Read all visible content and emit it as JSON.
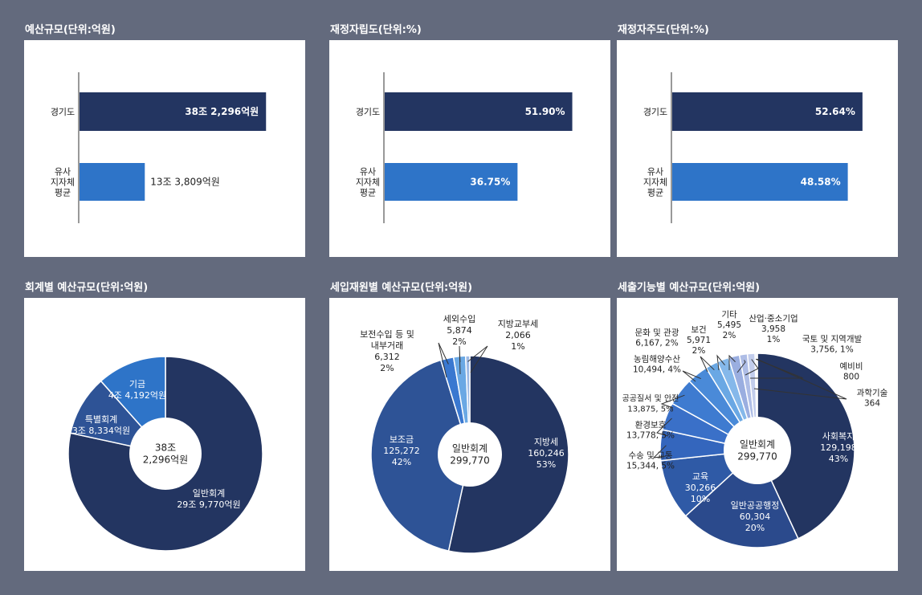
{
  "colors": {
    "background": "#636a7d",
    "navy": "#233561",
    "blue": "#2e74c8",
    "panel": "#ffffff"
  },
  "chart_data": [
    {
      "type": "bar",
      "orientation": "horizontal",
      "title": "예산규모(단위:억원)",
      "categories": [
        [
          "경기도"
        ],
        [
          "유사",
          "지자체",
          "평균"
        ]
      ],
      "values": [
        382296,
        133809
      ],
      "data_labels": [
        "38조 2,296억원",
        "13조 3,809억원"
      ],
      "bar_colors": [
        "#233561",
        "#2e74c8"
      ],
      "xlim": [
        0,
        400000
      ]
    },
    {
      "type": "bar",
      "orientation": "horizontal",
      "title": "재정자립도(단위:%)",
      "categories": [
        [
          "경기도"
        ],
        [
          "유사",
          "지자체",
          "평균"
        ]
      ],
      "values": [
        51.9,
        36.75
      ],
      "data_labels": [
        "51.90%",
        "36.75%"
      ],
      "bar_colors": [
        "#233561",
        "#2e74c8"
      ],
      "xlim": [
        0,
        54
      ]
    },
    {
      "type": "bar",
      "orientation": "horizontal",
      "title": "재정자주도(단위:%)",
      "categories": [
        [
          "경기도"
        ],
        [
          "유사",
          "지자체",
          "평균"
        ]
      ],
      "values": [
        52.64,
        48.58
      ],
      "data_labels": [
        "52.64%",
        "48.58%"
      ],
      "bar_colors": [
        "#233561",
        "#2e74c8"
      ],
      "xlim": [
        0,
        54
      ]
    },
    {
      "type": "pie",
      "donut": true,
      "title": "회계별 예산규모(단위:억원)",
      "center_label": [
        "38조",
        "2,296억원"
      ],
      "slices": [
        {
          "label": [
            "일반회계",
            "29조 9,770억원"
          ],
          "value": 299770,
          "color": "#233561"
        },
        {
          "label": [
            "특별회계",
            "3조 8,334억원"
          ],
          "value": 38334,
          "color": "#2e5396"
        },
        {
          "label": [
            "기금",
            "4조 4,192억원"
          ],
          "value": 44192,
          "color": "#2e74c8"
        }
      ]
    },
    {
      "type": "pie",
      "donut": true,
      "title": "세입재원별 예산규모(단위:억원)",
      "center_label": [
        "일반회계",
        "299,770"
      ],
      "slices": [
        {
          "label": [
            "지방세",
            "160,246",
            "53%"
          ],
          "value": 160246,
          "color": "#233561"
        },
        {
          "label": [
            "보조금",
            "125,272",
            "42%"
          ],
          "value": 125272,
          "color": "#2e5396"
        },
        {
          "label": [
            "보전수입 등 및",
            "내부거래",
            "6,312",
            "2%"
          ],
          "value": 6312,
          "color": "#3a78d0"
        },
        {
          "label": [
            "세외수입",
            "5,874",
            "2%"
          ],
          "value": 5874,
          "color": "#6aa8e4"
        },
        {
          "label": [
            "지방교부세",
            "2,066",
            "1%"
          ],
          "value": 2066,
          "color": "#9db9e4"
        }
      ]
    },
    {
      "type": "pie",
      "donut": true,
      "title": "세출기능별 예산규모(단위:억원)",
      "center_label": [
        "일반회계",
        "299,770"
      ],
      "slices": [
        {
          "label": [
            "사회복지",
            "129,198",
            "43%"
          ],
          "value": 129198,
          "color": "#233561"
        },
        {
          "label": [
            "일반공공행정",
            "60,304",
            "20%"
          ],
          "value": 60304,
          "color": "#2b4a8c"
        },
        {
          "label": [
            "교육",
            "30,266",
            "10%"
          ],
          "value": 30266,
          "color": "#2f5aa6"
        },
        {
          "label": [
            "수송 및 교통",
            "15,344, 5%"
          ],
          "value": 15344,
          "color": "#3466bd"
        },
        {
          "label": [
            "환경보호",
            "13,778, 5%"
          ],
          "value": 13778,
          "color": "#3a70c8"
        },
        {
          "label": [
            "공공질서 및 안전",
            "13,875, 5%"
          ],
          "value": 13875,
          "color": "#3e7bd0"
        },
        {
          "label": [
            "농림해양수산",
            "10,494, 4%"
          ],
          "value": 10494,
          "color": "#4a8ad8"
        },
        {
          "label": [
            "문화 및 관광",
            "6,167, 2%"
          ],
          "value": 6167,
          "color": "#6aa8e4"
        },
        {
          "label": [
            "보건",
            "5,971",
            "2%"
          ],
          "value": 5971,
          "color": "#85b8ea"
        },
        {
          "label": [
            "기타",
            "5,495",
            "2%"
          ],
          "value": 5495,
          "color": "#9aaee0"
        },
        {
          "label": [
            "산업·중소기업",
            "3,958",
            "1%"
          ],
          "value": 3958,
          "color": "#aebde6"
        },
        {
          "label": [
            "국토 및 지역개발",
            "3,756, 1%"
          ],
          "value": 3756,
          "color": "#c2cdec"
        },
        {
          "label": [
            "예비비",
            "800"
          ],
          "value": 800,
          "color": "#d8dff2"
        },
        {
          "label": [
            "과학기술",
            "364"
          ],
          "value": 364,
          "color": "#e8ecf8"
        }
      ]
    }
  ]
}
